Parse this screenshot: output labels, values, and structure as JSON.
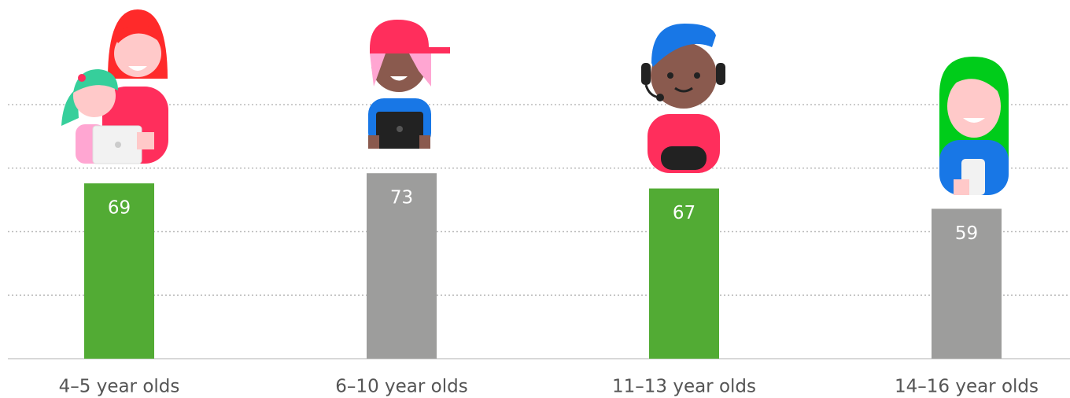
{
  "chart_data": {
    "type": "bar",
    "categories": [
      "4–5 year olds",
      "6–10 year olds",
      "11–13 year olds",
      "14–16 year olds"
    ],
    "values": [
      69,
      73,
      67,
      59
    ],
    "colors": [
      "#52ab34",
      "#9d9d9c",
      "#52ab34",
      "#9d9d9c"
    ],
    "ylim": [
      0,
      100
    ],
    "yticks": [
      0,
      25,
      50,
      75,
      100
    ],
    "grid": true
  }
}
